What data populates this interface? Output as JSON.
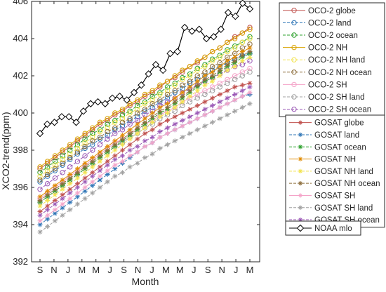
{
  "chart_data": {
    "type": "line",
    "xlabel": "Month",
    "ylabel": "XCO2-trend(ppm)",
    "ylim": [
      392,
      406
    ],
    "yticks": [
      392,
      394,
      396,
      398,
      400,
      402,
      404,
      406
    ],
    "xticks": [
      "S",
      "N",
      "J",
      "M",
      "M",
      "J",
      "S",
      "N",
      "J",
      "M",
      "M",
      "J",
      "S",
      "N",
      "J",
      "M"
    ],
    "grid": false,
    "legend_placement": "outside-right",
    "series": [
      {
        "name": "OCO-2 globe",
        "group": "oco",
        "color": "#c0504d",
        "marker": "circle",
        "dash": false,
        "values": [
          397.0,
          397.3,
          397.6,
          397.9,
          398.2,
          398.5,
          398.8,
          399.1,
          399.4,
          399.6,
          399.9,
          400.1,
          400.4,
          400.6,
          400.9,
          401.1,
          401.4,
          401.7,
          401.9,
          402.2,
          402.5,
          402.7,
          403.0,
          403.3,
          403.5,
          403.8,
          404.1,
          404.3,
          404.6
        ]
      },
      {
        "name": "OCO-2 land",
        "group": "oco",
        "color": "#2e75b6",
        "marker": "circle",
        "dash": true,
        "values": [
          396.3,
          396.6,
          396.9,
          397.2,
          397.5,
          397.8,
          398.1,
          398.3,
          398.6,
          398.8,
          399.1,
          399.3,
          399.6,
          399.8,
          400.1,
          400.3,
          400.6,
          400.8,
          401.1,
          401.3,
          401.6,
          401.8,
          402.0,
          402.3,
          402.5,
          402.7,
          402.9,
          403.1,
          403.2
        ]
      },
      {
        "name": "OCO-2 ocean",
        "group": "oco",
        "color": "#2ca02c",
        "marker": "circle",
        "dash": true,
        "values": [
          396.8,
          397.1,
          397.4,
          397.7,
          398.0,
          398.3,
          398.6,
          398.9,
          399.1,
          399.4,
          399.6,
          399.9,
          400.1,
          400.4,
          400.6,
          400.9,
          401.1,
          401.4,
          401.6,
          401.9,
          402.1,
          402.4,
          402.6,
          402.9,
          403.1,
          403.4,
          403.6,
          403.8,
          404.1
        ]
      },
      {
        "name": "OCO-2 NH",
        "group": "oco",
        "color": "#d9a300",
        "marker": "circle",
        "dash": false,
        "values": [
          397.1,
          397.4,
          397.7,
          398.0,
          398.3,
          398.6,
          398.9,
          399.2,
          399.5,
          399.7,
          400.0,
          400.2,
          400.5,
          400.7,
          401.0,
          401.2,
          401.5,
          401.7,
          402.0,
          402.3,
          402.5,
          402.8,
          403.0,
          403.3,
          403.5,
          403.8,
          404.0,
          404.3,
          404.5
        ]
      },
      {
        "name": "OCO-2 NH land",
        "group": "oco",
        "color": "#f2e34c",
        "marker": "circle",
        "dash": true,
        "values": [
          396.6,
          396.9,
          397.2,
          397.5,
          397.8,
          398.1,
          398.4,
          398.7,
          399.0,
          399.2,
          399.5,
          399.7,
          400.0,
          400.2,
          400.5,
          400.7,
          401.0,
          401.2,
          401.5,
          401.8,
          402.0,
          402.3,
          402.5,
          402.8,
          403.0,
          403.3,
          403.5,
          403.8,
          404.0
        ]
      },
      {
        "name": "OCO-2 NH ocean",
        "group": "oco",
        "color": "#8c6d3a",
        "marker": "circle",
        "dash": true,
        "values": [
          396.4,
          396.7,
          397.0,
          397.3,
          397.6,
          397.9,
          398.2,
          398.5,
          398.7,
          399.0,
          399.2,
          399.5,
          399.7,
          400.0,
          400.2,
          400.5,
          400.7,
          401.0,
          401.2,
          401.5,
          401.7,
          402.0,
          402.2,
          402.5,
          402.7,
          403.0,
          403.2,
          403.5,
          403.7
        ]
      },
      {
        "name": "OCO-2 SH",
        "group": "oco",
        "color": "#f4a3c8",
        "marker": "circle",
        "dash": false,
        "values": [
          395.4,
          395.7,
          396.0,
          396.3,
          396.6,
          396.9,
          397.2,
          397.5,
          397.8,
          398.1,
          398.4,
          398.6,
          398.9,
          399.1,
          399.4,
          399.6,
          399.9,
          400.1,
          400.3,
          400.6,
          400.8,
          401.0,
          401.2,
          401.4,
          401.6,
          401.8,
          402.0,
          402.2,
          402.4
        ]
      },
      {
        "name": "OCO-2 SH land",
        "group": "oco",
        "color": "#a0a0a0",
        "marker": "circle",
        "dash": true,
        "values": [
          395.2,
          395.5,
          395.8,
          396.1,
          396.4,
          396.7,
          397.0,
          397.3,
          397.6,
          397.9,
          398.2,
          398.4,
          398.7,
          398.9,
          399.2,
          399.4,
          399.7,
          399.9,
          400.1,
          400.4,
          400.6,
          400.8,
          401.0,
          401.2,
          401.4,
          401.6,
          401.8,
          402.0,
          402.2
        ]
      },
      {
        "name": "OCO-2 SH ocean",
        "group": "oco",
        "color": "#9b59b6",
        "marker": "circle",
        "dash": true,
        "values": [
          395.9,
          396.2,
          396.5,
          396.8,
          397.1,
          397.4,
          397.7,
          398.0,
          398.3,
          398.6,
          398.9,
          399.1,
          399.4,
          399.6,
          399.9,
          400.1,
          400.4,
          400.6,
          400.8,
          401.1,
          401.3,
          401.5,
          401.7,
          401.9,
          402.1,
          402.3,
          402.5,
          402.6,
          402.8
        ]
      },
      {
        "name": "GOSAT globe",
        "group": "gosat",
        "color": "#c0504d",
        "marker": "asterisk",
        "dash": false,
        "values": [
          394.7,
          395.0,
          395.3,
          395.6,
          395.9,
          396.2,
          396.5,
          396.8,
          397.1,
          397.4,
          397.7,
          398.0,
          398.3,
          398.6,
          398.9,
          399.1,
          399.4,
          399.6,
          399.8,
          400.0,
          400.2,
          400.4,
          400.6,
          400.8,
          401.0,
          401.2,
          401.4,
          401.5,
          401.6
        ]
      },
      {
        "name": "GOSAT land",
        "group": "gosat",
        "color": "#2e75b6",
        "marker": "asterisk",
        "dash": true,
        "values": [
          394.0,
          394.3,
          394.6,
          394.9,
          395.2,
          395.5,
          395.8,
          396.1,
          396.4,
          396.7,
          397.0,
          397.3,
          397.6,
          397.9,
          398.2,
          398.4,
          398.7,
          398.9,
          399.1,
          399.3,
          399.5,
          399.7,
          399.9,
          400.1,
          400.3,
          400.5,
          400.7,
          400.9,
          401.0
        ]
      },
      {
        "name": "GOSAT ocean",
        "group": "gosat",
        "color": "#2ca02c",
        "marker": "asterisk",
        "dash": true,
        "values": [
          395.2,
          395.5,
          395.8,
          396.1,
          396.4,
          396.7,
          397.0,
          397.3,
          397.6,
          397.9,
          398.2,
          398.5,
          398.8,
          399.1,
          399.4,
          399.7,
          400.0,
          400.2,
          400.5,
          400.8,
          401.1,
          401.4,
          401.7,
          401.9,
          402.2,
          402.5,
          402.7,
          403.0,
          403.2
        ]
      },
      {
        "name": "GOSAT NH",
        "group": "gosat",
        "color": "#e08a00",
        "marker": "asterisk",
        "dash": false,
        "values": [
          395.5,
          395.8,
          396.1,
          396.4,
          396.7,
          397.0,
          397.3,
          397.6,
          397.9,
          398.2,
          398.5,
          398.8,
          399.1,
          399.4,
          399.7,
          400.0,
          400.3,
          400.5,
          400.8,
          401.1,
          401.4,
          401.7,
          402.0,
          402.2,
          402.5,
          402.8,
          403.0,
          403.3,
          403.5
        ]
      },
      {
        "name": "GOSAT NH land",
        "group": "gosat",
        "color": "#f2e34c",
        "marker": "asterisk",
        "dash": true,
        "values": [
          395.0,
          395.3,
          395.6,
          395.9,
          396.2,
          396.5,
          396.8,
          397.1,
          397.4,
          397.7,
          398.0,
          398.3,
          398.6,
          398.9,
          399.2,
          399.5,
          399.8,
          400.0,
          400.3,
          400.6,
          400.9,
          401.2,
          401.5,
          401.7,
          402.0,
          402.3,
          402.5,
          402.8,
          403.0
        ]
      },
      {
        "name": "GOSAT NH ocean",
        "group": "gosat",
        "color": "#8c6d3a",
        "marker": "asterisk",
        "dash": true,
        "values": [
          395.3,
          395.6,
          395.9,
          396.2,
          396.5,
          396.8,
          397.1,
          397.4,
          397.7,
          398.0,
          398.3,
          398.6,
          398.9,
          399.2,
          399.5,
          399.8,
          400.1,
          400.3,
          400.6,
          400.9,
          401.2,
          401.5,
          401.8,
          402.0,
          402.3,
          402.6,
          402.8,
          403.1,
          403.3
        ]
      },
      {
        "name": "GOSAT SH",
        "group": "gosat",
        "color": "#f4a3c8",
        "marker": "asterisk",
        "dash": false,
        "values": [
          394.2,
          394.5,
          394.8,
          395.1,
          395.4,
          395.7,
          396.0,
          396.3,
          396.6,
          396.9,
          397.2,
          397.4,
          397.7,
          397.9,
          398.2,
          398.4,
          398.7,
          398.9,
          399.1,
          399.3,
          399.5,
          399.7,
          399.9,
          400.1,
          400.3,
          400.5,
          400.7,
          400.9,
          401.1
        ]
      },
      {
        "name": "GOSAT SH land",
        "group": "gosat",
        "color": "#a0a0a0",
        "marker": "asterisk",
        "dash": true,
        "values": [
          393.6,
          393.9,
          394.2,
          394.5,
          394.8,
          395.1,
          395.4,
          395.7,
          396.0,
          396.3,
          396.6,
          396.8,
          397.1,
          397.3,
          397.6,
          397.8,
          398.1,
          398.3,
          398.5,
          398.7,
          398.9,
          399.1,
          399.3,
          399.5,
          399.7,
          399.9,
          400.1,
          400.3,
          400.5
        ]
      },
      {
        "name": "GOSAT SH ocean",
        "group": "gosat",
        "color": "#9b59b6",
        "marker": "asterisk",
        "dash": true,
        "values": [
          394.5,
          394.8,
          395.1,
          395.4,
          395.7,
          396.0,
          396.3,
          396.6,
          396.9,
          397.2,
          397.5,
          397.7,
          398.0,
          398.2,
          398.5,
          398.7,
          399.0,
          399.2,
          399.4,
          399.6,
          399.8,
          400.0,
          400.2,
          400.4,
          400.6,
          400.8,
          401.0,
          401.2,
          401.4
        ]
      },
      {
        "name": "NOAA mlo",
        "group": "noaa",
        "color": "#000000",
        "marker": "diamond",
        "dash": false,
        "values": [
          398.9,
          399.4,
          399.5,
          399.8,
          399.8,
          399.5,
          400.1,
          400.5,
          400.6,
          400.5,
          400.8,
          400.9,
          400.7,
          401.1,
          401.5,
          402.1,
          402.6,
          402.3,
          403.2,
          403.3,
          404.6,
          404.4,
          404.5,
          404.0,
          404.1,
          404.5,
          405.4,
          405.2,
          405.9,
          405.6
        ]
      }
    ]
  }
}
